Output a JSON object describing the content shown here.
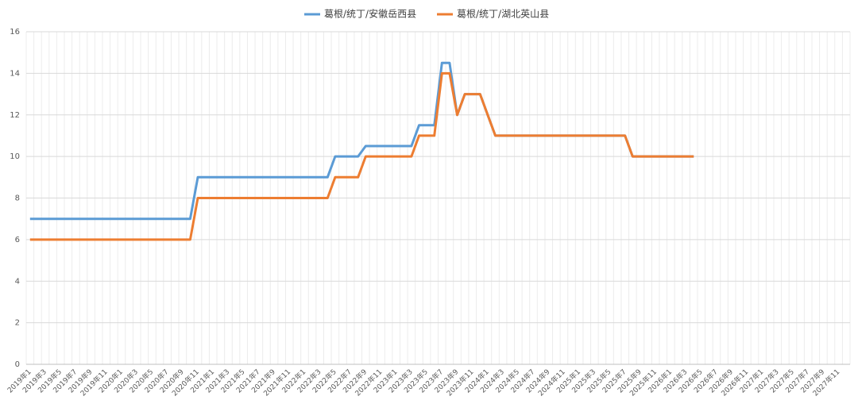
{
  "chart_data": {
    "type": "line",
    "categories": [
      "2019年1",
      null,
      "2019年3",
      null,
      "2019年5",
      null,
      "2019年7",
      null,
      "2019年9",
      null,
      "2019年11",
      null,
      "2020年1",
      null,
      "2020年3",
      null,
      "2020年5",
      null,
      "2020年7",
      null,
      "2020年9",
      null,
      "2020年11",
      null,
      "2021年1",
      null,
      "2021年3",
      null,
      "2021年5",
      null,
      "2021年7",
      null,
      "2021年9",
      null,
      "2021年11",
      null,
      "2022年1",
      null,
      "2022年3",
      null,
      "2022年5",
      null,
      "2022年7",
      null,
      "2022年9",
      null,
      "2022年11",
      null,
      "2023年1",
      null,
      "2023年3",
      null,
      "2023年5",
      null,
      "2023年7",
      null,
      "2023年9",
      null,
      "2023年11",
      null,
      "2024年1",
      null,
      "2024年3",
      null,
      "2024年5",
      null,
      "2024年7",
      null,
      "2024年9",
      null,
      "2024年11",
      null,
      "2025年1",
      null,
      "2025年3",
      null,
      "2025年5",
      null,
      "2025年7",
      null,
      "2025年9",
      null,
      "2025年11",
      null,
      "2026年1",
      null,
      "2026年3",
      null,
      "2026年5",
      null,
      "2026年7",
      null,
      "2026年9",
      null,
      "2026年11",
      null,
      "2027年1",
      null,
      "2027年3",
      null,
      "2027年5",
      null,
      "2027年7",
      null,
      "2027年9",
      null,
      "2027年11",
      null
    ],
    "series": [
      {
        "name": "葛根/统丁/安徽岳西县",
        "color": "#5b9bd5",
        "values": [
          7,
          7,
          7,
          7,
          7,
          7,
          7,
          7,
          7,
          7,
          7,
          7,
          7,
          7,
          7,
          7,
          7,
          7,
          7,
          7,
          7,
          7,
          9,
          9,
          9,
          9,
          9,
          9,
          9,
          9,
          9,
          9,
          9,
          9,
          9,
          9,
          9,
          9,
          9,
          9,
          10,
          10,
          10,
          10,
          10.5,
          10.5,
          10.5,
          10.5,
          10.5,
          10.5,
          10.5,
          11.5,
          11.5,
          11.5,
          14.5,
          14.5,
          12,
          13,
          13,
          13,
          12,
          11,
          11,
          11,
          11,
          11,
          11,
          11,
          11,
          11,
          11,
          11,
          11,
          11,
          11,
          11,
          11,
          11,
          11,
          10,
          10,
          10,
          10,
          10,
          10,
          10,
          10,
          10,
          null,
          null,
          null,
          null,
          null,
          null,
          null,
          null,
          null,
          null,
          null,
          null,
          null,
          null,
          null,
          null,
          null,
          null,
          null,
          null
        ]
      },
      {
        "name": "葛根/统丁/湖北英山县",
        "color": "#ed7d31",
        "values": [
          6,
          6,
          6,
          6,
          6,
          6,
          6,
          6,
          6,
          6,
          6,
          6,
          6,
          6,
          6,
          6,
          6,
          6,
          6,
          6,
          6,
          6,
          8,
          8,
          8,
          8,
          8,
          8,
          8,
          8,
          8,
          8,
          8,
          8,
          8,
          8,
          8,
          8,
          8,
          8,
          9,
          9,
          9,
          9,
          10,
          10,
          10,
          10,
          10,
          10,
          10,
          11,
          11,
          11,
          14,
          14,
          12,
          13,
          13,
          13,
          12,
          11,
          11,
          11,
          11,
          11,
          11,
          11,
          11,
          11,
          11,
          11,
          11,
          11,
          11,
          11,
          11,
          11,
          11,
          10,
          10,
          10,
          10,
          10,
          10,
          10,
          10,
          10,
          null,
          null,
          null,
          null,
          null,
          null,
          null,
          null,
          null,
          null,
          null,
          null,
          null,
          null,
          null,
          null,
          null,
          null,
          null,
          null
        ]
      }
    ],
    "ylim": [
      0,
      16
    ],
    "yticks": [
      0,
      2,
      4,
      6,
      8,
      10,
      12,
      14,
      16
    ],
    "grid": true,
    "legend": "top"
  }
}
